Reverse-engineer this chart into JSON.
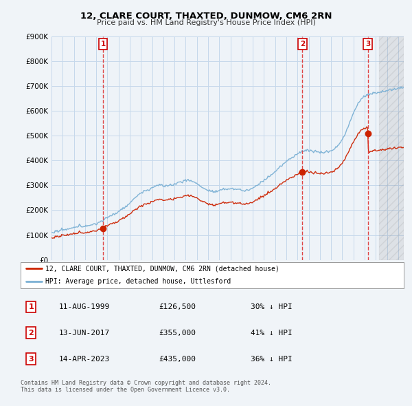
{
  "title": "12, CLARE COURT, THAXTED, DUNMOW, CM6 2RN",
  "subtitle": "Price paid vs. HM Land Registry's House Price Index (HPI)",
  "ylim": [
    0,
    900000
  ],
  "yticks": [
    0,
    100000,
    200000,
    300000,
    400000,
    500000,
    600000,
    700000,
    800000,
    900000
  ],
  "ytick_labels": [
    "£0",
    "£100K",
    "£200K",
    "£300K",
    "£400K",
    "£500K",
    "£600K",
    "£700K",
    "£800K",
    "£900K"
  ],
  "background_color": "#f0f4f8",
  "plot_bg_color": "#eef3f8",
  "grid_color": "#c5d8eb",
  "hpi_color": "#7ab0d4",
  "price_color": "#cc2200",
  "vline_color": "#dd3333",
  "purchases": [
    {
      "date_num": 1999.61,
      "price": 126500,
      "label": "1"
    },
    {
      "date_num": 2017.44,
      "price": 355000,
      "label": "2"
    },
    {
      "date_num": 2023.28,
      "price": 435000,
      "label": "3"
    }
  ],
  "legend_line1": "12, CLARE COURT, THAXTED, DUNMOW, CM6 2RN (detached house)",
  "legend_line2": "HPI: Average price, detached house, Uttlesford",
  "table_data": [
    [
      "1",
      "11-AUG-1999",
      "£126,500",
      "30% ↓ HPI"
    ],
    [
      "2",
      "13-JUN-2017",
      "£355,000",
      "41% ↓ HPI"
    ],
    [
      "3",
      "14-APR-2023",
      "£435,000",
      "36% ↓ HPI"
    ]
  ],
  "footer": "Contains HM Land Registry data © Crown copyright and database right 2024.\nThis data is licensed under the Open Government Licence v3.0.",
  "xmin": 1995.0,
  "xmax": 2026.5,
  "hatch_start": 2024.3
}
